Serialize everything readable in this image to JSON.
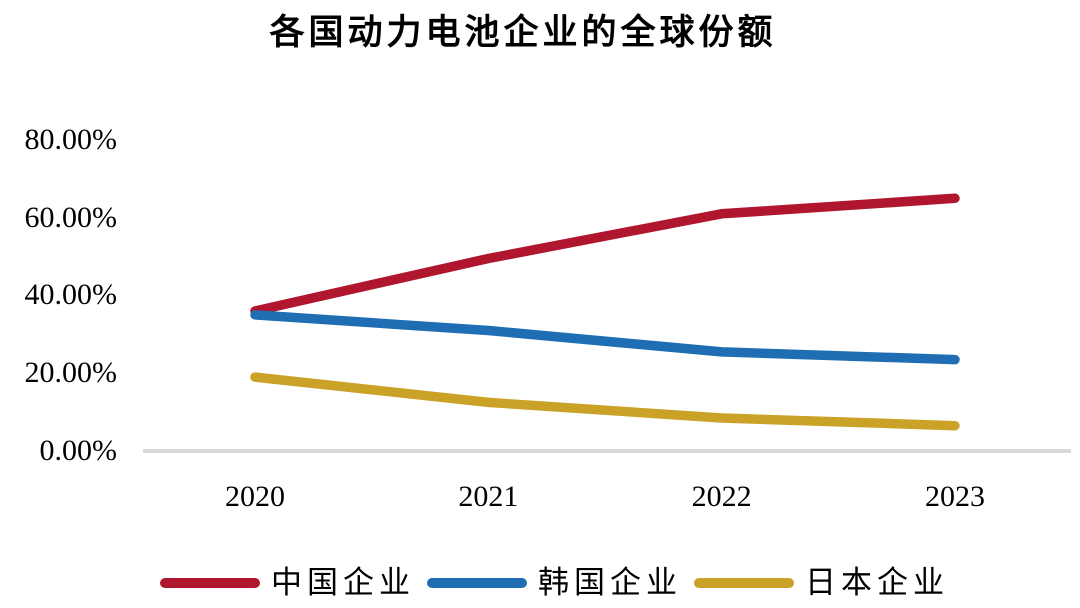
{
  "chart_data": {
    "type": "line",
    "title": "各国动力电池企业的全球份额",
    "categories": [
      "2020",
      "2021",
      "2022",
      "2023"
    ],
    "series": [
      {
        "name": "中国企业",
        "color": "#B0162E",
        "values": [
          36,
          49.5,
          61,
          65
        ]
      },
      {
        "name": "韩国企业",
        "color": "#1F6EB4",
        "values": [
          35,
          31,
          25.5,
          23.5
        ]
      },
      {
        "name": "日本企业",
        "color": "#C9A227",
        "values": [
          19,
          12.5,
          8.5,
          6.5
        ]
      }
    ],
    "y_ticks": [
      {
        "label": "80.00%",
        "value": 80
      },
      {
        "label": "60.00%",
        "value": 60
      },
      {
        "label": "40.00%",
        "value": 40
      },
      {
        "label": "20.00%",
        "value": 20
      },
      {
        "label": "0.00%",
        "value": 0
      }
    ],
    "ylim": [
      0,
      80
    ],
    "unit": "percent",
    "grid": false,
    "legend_position": "bottom",
    "axis_color": "#D9D9D9",
    "text_color": "#000000",
    "background": "#FFFFFF"
  }
}
